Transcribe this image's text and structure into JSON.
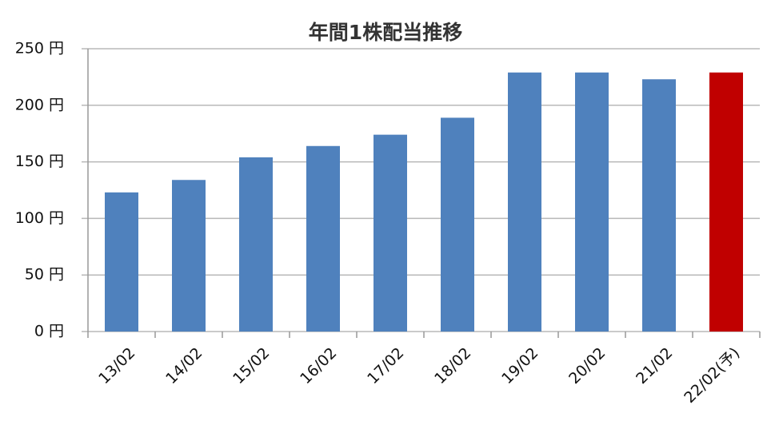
{
  "chart_data": {
    "type": "bar",
    "title": "年間1株配当推移",
    "categories": [
      "13/02",
      "14/02",
      "15/02",
      "16/02",
      "17/02",
      "18/02",
      "19/02",
      "20/02",
      "21/02",
      "22/02(予)"
    ],
    "values": [
      123,
      134,
      154,
      164,
      174,
      189,
      229,
      229,
      223,
      229
    ],
    "colors": [
      "#4f81bd",
      "#4f81bd",
      "#4f81bd",
      "#4f81bd",
      "#4f81bd",
      "#4f81bd",
      "#4f81bd",
      "#4f81bd",
      "#4f81bd",
      "#c00000"
    ],
    "ylim": [
      0,
      250
    ],
    "yticks": [
      {
        "value": 0,
        "label": "0 円"
      },
      {
        "value": 50,
        "label": "50 円"
      },
      {
        "value": 100,
        "label": "100 円"
      },
      {
        "value": 150,
        "label": "150 円"
      },
      {
        "value": 200,
        "label": "200 円"
      },
      {
        "value": 250,
        "label": "250 円"
      }
    ],
    "grid": true
  }
}
